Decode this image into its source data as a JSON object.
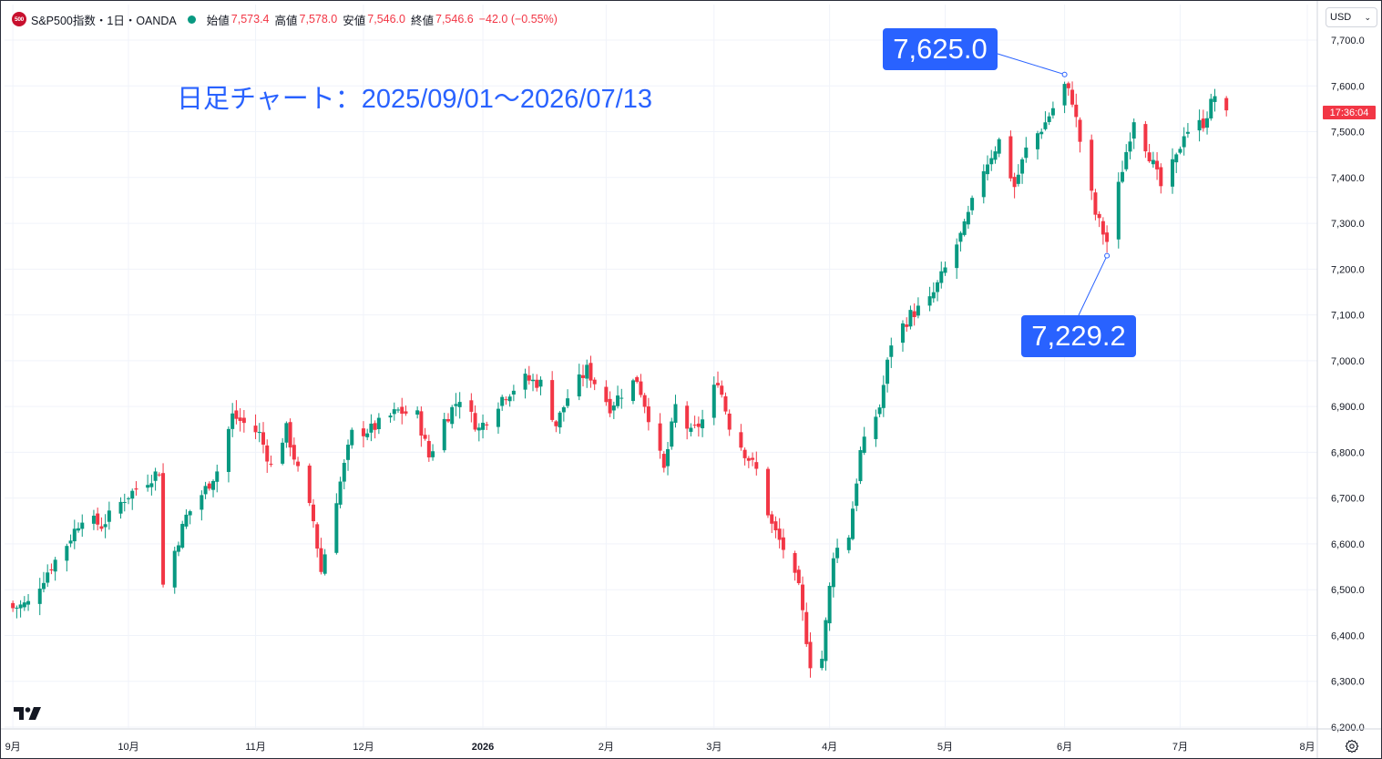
{
  "legend": {
    "logo_text": "500",
    "symbol": "S&P500指数・1日・OANDA",
    "open_label": "始値",
    "open": "7,573.4",
    "high_label": "高値",
    "high": "7,578.0",
    "low_label": "安値",
    "low": "7,546.0",
    "close_label": "終値",
    "close": "7,546.6",
    "change": "−42.0 (−0.55%)",
    "status_color": "#089981"
  },
  "currency": {
    "label": "USD",
    "icon": "chevron-down-icon"
  },
  "title": "日足チャート：2025/09/01〜2026/07/13",
  "annotations": {
    "high": {
      "label": "7,625.0",
      "value": 7625.0,
      "date": "2026-06-01"
    },
    "low": {
      "label": "7,229.2",
      "value": 7229.2,
      "date": "2026-06-12"
    }
  },
  "last_price_timer": "17:36:04",
  "colors": {
    "up": "#089981",
    "down": "#f23645",
    "accent": "#2962ff"
  },
  "chart_data": {
    "type": "candlestick",
    "y_axis": {
      "ticks": [
        "7,700.0",
        "7,600.0",
        "7,500.0",
        "7,400.0",
        "7,300.0",
        "7,200.0",
        "7,100.0",
        "7,000.0",
        "6,900.0",
        "6,800.0",
        "6,700.0",
        "6,600.0",
        "6,500.0",
        "6,400.0",
        "6,300.0",
        "6,200.0"
      ],
      "tick_values": [
        7700,
        7600,
        7500,
        7400,
        7300,
        7200,
        7100,
        7000,
        6900,
        6800,
        6700,
        6600,
        6500,
        6400,
        6300,
        6200
      ],
      "range": [
        6200,
        7700
      ]
    },
    "x_axis": {
      "ticks": [
        {
          "label": "9月",
          "date": "2025-09-01",
          "bold": false
        },
        {
          "label": "10月",
          "date": "2025-10-01",
          "bold": false
        },
        {
          "label": "11月",
          "date": "2025-11-03",
          "bold": false
        },
        {
          "label": "12月",
          "date": "2025-12-01",
          "bold": false
        },
        {
          "label": "2026",
          "date": "2026-01-01",
          "bold": true
        },
        {
          "label": "2月",
          "date": "2026-02-02",
          "bold": false
        },
        {
          "label": "3月",
          "date": "2026-03-02",
          "bold": false
        },
        {
          "label": "4月",
          "date": "2026-04-01",
          "bold": false
        },
        {
          "label": "5月",
          "date": "2026-05-01",
          "bold": false
        },
        {
          "label": "6月",
          "date": "2026-06-01",
          "bold": false
        },
        {
          "label": "7月",
          "date": "2026-07-01",
          "bold": false
        },
        {
          "label": "8月",
          "date": "2026-08-03",
          "bold": false
        }
      ]
    },
    "grid": true,
    "start_date": "2025-09-01",
    "end_date": "2026-07-13",
    "close_waypoints": [
      [
        "2025-09-01",
        6460
      ],
      [
        "2025-09-05",
        6470
      ],
      [
        "2025-09-10",
        6540
      ],
      [
        "2025-09-15",
        6600
      ],
      [
        "2025-09-19",
        6660
      ],
      [
        "2025-09-24",
        6640
      ],
      [
        "2025-09-30",
        6700
      ],
      [
        "2025-10-06",
        6740
      ],
      [
        "2025-10-09",
        6760
      ],
      [
        "2025-10-10",
        6510
      ],
      [
        "2025-10-16",
        6660
      ],
      [
        "2025-10-21",
        6720
      ],
      [
        "2025-10-24",
        6760
      ],
      [
        "2025-10-28",
        6880
      ],
      [
        "2025-11-04",
        6840
      ],
      [
        "2025-11-07",
        6770
      ],
      [
        "2025-11-11",
        6850
      ],
      [
        "2025-11-14",
        6760
      ],
      [
        "2025-11-18",
        6650
      ],
      [
        "2025-11-20",
        6540
      ],
      [
        "2025-11-24",
        6700
      ],
      [
        "2025-11-28",
        6840
      ],
      [
        "2025-12-03",
        6850
      ],
      [
        "2025-12-10",
        6890
      ],
      [
        "2025-12-15",
        6880
      ],
      [
        "2025-12-18",
        6790
      ],
      [
        "2025-12-22",
        6870
      ],
      [
        "2025-12-26",
        6920
      ],
      [
        "2025-12-31",
        6850
      ],
      [
        "2026-01-06",
        6920
      ],
      [
        "2026-01-12",
        6960
      ],
      [
        "2026-01-16",
        6950
      ],
      [
        "2026-01-20",
        6860
      ],
      [
        "2026-01-23",
        6920
      ],
      [
        "2026-01-28",
        6980
      ],
      [
        "2026-02-03",
        6900
      ],
      [
        "2026-02-06",
        6930
      ],
      [
        "2026-02-10",
        6960
      ],
      [
        "2026-02-13",
        6880
      ],
      [
        "2026-02-17",
        6760
      ],
      [
        "2026-02-20",
        6900
      ],
      [
        "2026-02-24",
        6840
      ],
      [
        "2026-02-27",
        6870
      ],
      [
        "2026-03-03",
        6960
      ],
      [
        "2026-03-06",
        6860
      ],
      [
        "2026-03-10",
        6800
      ],
      [
        "2026-03-13",
        6760
      ],
      [
        "2026-03-17",
        6640
      ],
      [
        "2026-03-20",
        6590
      ],
      [
        "2026-03-24",
        6500
      ],
      [
        "2026-03-27",
        6340
      ],
      [
        "2026-03-30",
        6350
      ],
      [
        "2026-04-02",
        6580
      ],
      [
        "2026-04-06",
        6620
      ],
      [
        "2026-04-09",
        6800
      ],
      [
        "2026-04-14",
        6900
      ],
      [
        "2026-04-17",
        7040
      ],
      [
        "2026-04-22",
        7100
      ],
      [
        "2026-04-27",
        7130
      ],
      [
        "2026-05-01",
        7200
      ],
      [
        "2026-05-06",
        7290
      ],
      [
        "2026-05-11",
        7420
      ],
      [
        "2026-05-15",
        7480
      ],
      [
        "2026-05-19",
        7380
      ],
      [
        "2026-05-22",
        7460
      ],
      [
        "2026-05-27",
        7520
      ],
      [
        "2026-06-01",
        7600
      ],
      [
        "2026-06-03",
        7570
      ],
      [
        "2026-06-05",
        7480
      ],
      [
        "2026-06-09",
        7320
      ],
      [
        "2026-06-12",
        7260
      ],
      [
        "2026-06-16",
        7420
      ],
      [
        "2026-06-19",
        7530
      ],
      [
        "2026-06-23",
        7450
      ],
      [
        "2026-06-26",
        7380
      ],
      [
        "2026-06-30",
        7440
      ],
      [
        "2026-07-02",
        7500
      ],
      [
        "2026-07-07",
        7520
      ],
      [
        "2026-07-10",
        7580
      ],
      [
        "2026-07-13",
        7546.6
      ]
    ]
  }
}
